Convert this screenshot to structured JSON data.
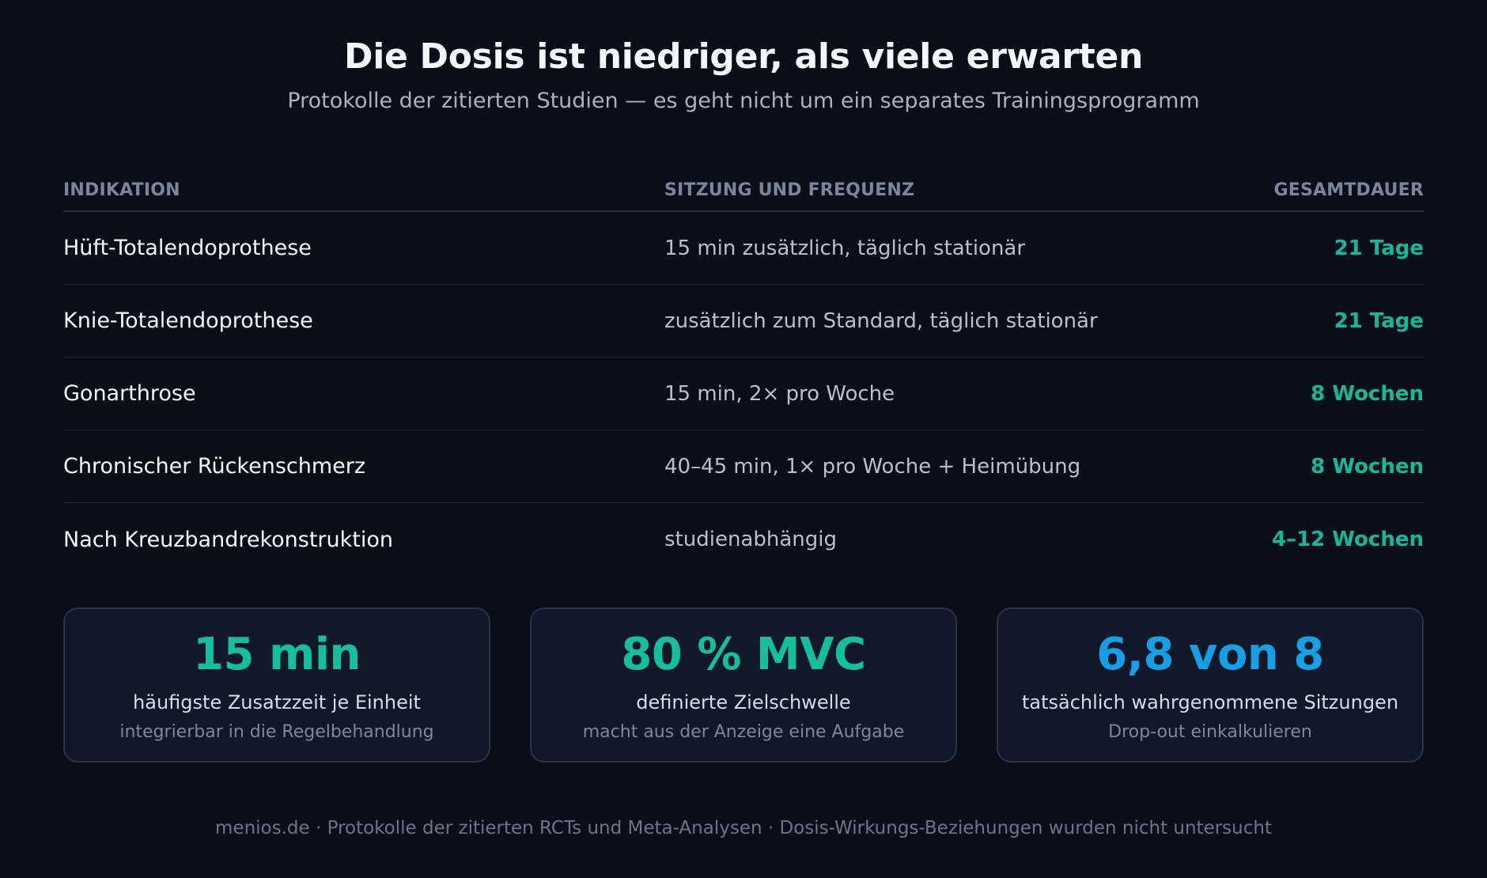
{
  "header": {
    "title": "Die Dosis ist niedriger, als viele erwarten",
    "subtitle": "Protokolle der zitierten Studien — es geht nicht um ein separates Trainingsprogramm"
  },
  "table": {
    "columns": [
      "INDIKATION",
      "SITZUNG UND FREQUENZ",
      "GESAMTDAUER"
    ],
    "rows": [
      {
        "indikation": "Hüft-Totalendoprothese",
        "sitzung": "15 min zusätzlich, täglich stationär",
        "dauer": "21 Tage"
      },
      {
        "indikation": "Knie-Totalendoprothese",
        "sitzung": "zusätzlich zum Standard, täglich stationär",
        "dauer": "21 Tage"
      },
      {
        "indikation": "Gonarthrose",
        "sitzung": "15 min, 2× pro Woche",
        "dauer": "8 Wochen"
      },
      {
        "indikation": "Chronischer Rückenschmerz",
        "sitzung": "40–45 min, 1× pro Woche + Heimübung",
        "dauer": "8 Wochen"
      },
      {
        "indikation": "Nach Kreuzbandrekonstruktion",
        "sitzung": "studienabhängig",
        "dauer": "4–12 Wochen"
      }
    ],
    "accent_color": "#12b99b"
  },
  "cards": [
    {
      "value": "15 min",
      "label": "häufigste Zusatzzeit je Einheit",
      "sub": "integrierbar in die Regelbehandlung",
      "color": "#14bfa0"
    },
    {
      "value": "80 % MVC",
      "label": "definierte Zielschwelle",
      "sub": "macht aus der Anzeige eine Aufgabe",
      "color": "#14bfa0"
    },
    {
      "value": "6,8 von 8",
      "label": "tatsächlich wahrgenommene Sitzungen",
      "sub": "Drop-out einkalkulieren",
      "color": "#159fe6"
    }
  ],
  "footer": {
    "text": "menios.de · Protokolle der zitierten RCTs und Meta-Analysen · Dosis-Wirkungs-Beziehungen wurden nicht untersucht"
  }
}
